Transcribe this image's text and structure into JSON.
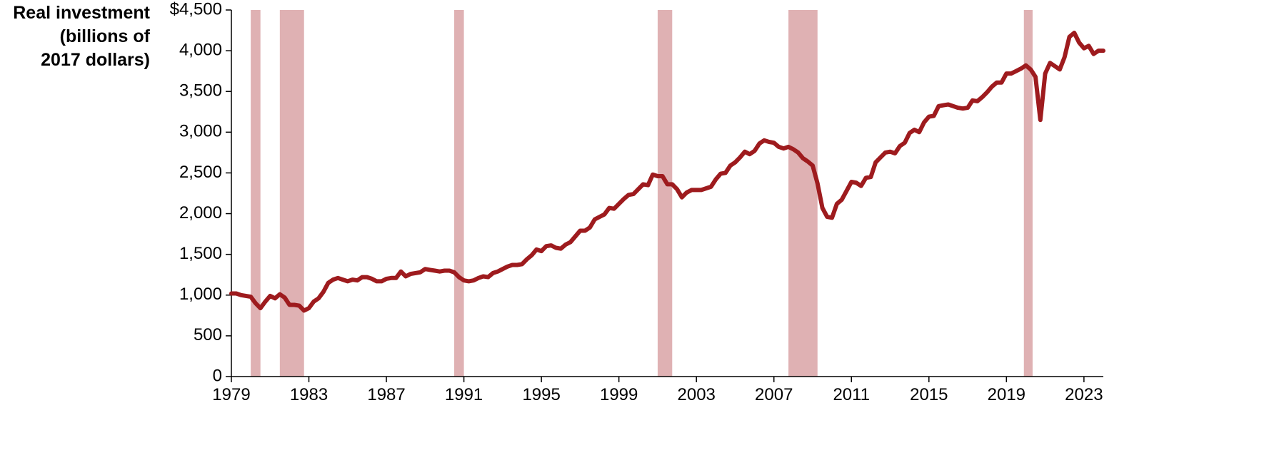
{
  "chart_data": {
    "type": "line",
    "ylabel_lines": [
      "Real investment",
      "(billions of",
      "2017 dollars)"
    ],
    "xlabel": "",
    "ylim": [
      0,
      4500
    ],
    "xlim": [
      1979.0,
      2024.0
    ],
    "x_ticks": [
      1979,
      1983,
      1987,
      1991,
      1995,
      1999,
      2003,
      2007,
      2011,
      2015,
      2019,
      2023
    ],
    "y_ticks": [
      {
        "value": 0,
        "label": "0"
      },
      {
        "value": 500,
        "label": "500"
      },
      {
        "value": 1000,
        "label": "1,000"
      },
      {
        "value": 1500,
        "label": "1,500"
      },
      {
        "value": 2000,
        "label": "2,000"
      },
      {
        "value": 2500,
        "label": "2,500"
      },
      {
        "value": 3000,
        "label": "3,000"
      },
      {
        "value": 3500,
        "label": "3,500"
      },
      {
        "value": 4000,
        "label": "4,000"
      },
      {
        "value": 4500,
        "label": "$4,500"
      }
    ],
    "recessions": [
      [
        1980.0,
        1980.5
      ],
      [
        1981.5,
        1982.75
      ],
      [
        1990.5,
        1991.0
      ],
      [
        2001.0,
        2001.75
      ],
      [
        2007.75,
        2009.25
      ],
      [
        2019.9,
        2020.35
      ]
    ],
    "series": [
      {
        "color": "#9e1b1e",
        "points": [
          [
            1979.0,
            1020
          ],
          [
            1979.25,
            1020
          ],
          [
            1979.5,
            1000
          ],
          [
            1979.75,
            990
          ],
          [
            1980.0,
            980
          ],
          [
            1980.25,
            900
          ],
          [
            1980.5,
            840
          ],
          [
            1980.75,
            920
          ],
          [
            1981.0,
            990
          ],
          [
            1981.25,
            960
          ],
          [
            1981.5,
            1010
          ],
          [
            1981.75,
            970
          ],
          [
            1982.0,
            880
          ],
          [
            1982.25,
            880
          ],
          [
            1982.5,
            870
          ],
          [
            1982.75,
            810
          ],
          [
            1983.0,
            840
          ],
          [
            1983.25,
            920
          ],
          [
            1983.5,
            960
          ],
          [
            1983.75,
            1040
          ],
          [
            1984.0,
            1150
          ],
          [
            1984.25,
            1190
          ],
          [
            1984.5,
            1210
          ],
          [
            1984.75,
            1190
          ],
          [
            1985.0,
            1170
          ],
          [
            1985.25,
            1190
          ],
          [
            1985.5,
            1180
          ],
          [
            1985.75,
            1220
          ],
          [
            1986.0,
            1220
          ],
          [
            1986.25,
            1200
          ],
          [
            1986.5,
            1170
          ],
          [
            1986.75,
            1170
          ],
          [
            1987.0,
            1200
          ],
          [
            1987.25,
            1210
          ],
          [
            1987.5,
            1210
          ],
          [
            1987.75,
            1290
          ],
          [
            1988.0,
            1230
          ],
          [
            1988.25,
            1260
          ],
          [
            1988.5,
            1270
          ],
          [
            1988.75,
            1280
          ],
          [
            1989.0,
            1320
          ],
          [
            1989.25,
            1310
          ],
          [
            1989.5,
            1300
          ],
          [
            1989.75,
            1290
          ],
          [
            1990.0,
            1300
          ],
          [
            1990.25,
            1300
          ],
          [
            1990.5,
            1280
          ],
          [
            1990.75,
            1220
          ],
          [
            1991.0,
            1180
          ],
          [
            1991.25,
            1170
          ],
          [
            1991.5,
            1180
          ],
          [
            1991.75,
            1210
          ],
          [
            1992.0,
            1230
          ],
          [
            1992.25,
            1220
          ],
          [
            1992.5,
            1270
          ],
          [
            1992.75,
            1290
          ],
          [
            1993.0,
            1320
          ],
          [
            1993.25,
            1350
          ],
          [
            1993.5,
            1370
          ],
          [
            1993.75,
            1370
          ],
          [
            1994.0,
            1380
          ],
          [
            1994.25,
            1440
          ],
          [
            1994.5,
            1490
          ],
          [
            1994.75,
            1560
          ],
          [
            1995.0,
            1540
          ],
          [
            1995.25,
            1600
          ],
          [
            1995.5,
            1610
          ],
          [
            1995.75,
            1580
          ],
          [
            1996.0,
            1570
          ],
          [
            1996.25,
            1620
          ],
          [
            1996.5,
            1650
          ],
          [
            1996.75,
            1720
          ],
          [
            1997.0,
            1790
          ],
          [
            1997.25,
            1790
          ],
          [
            1997.5,
            1830
          ],
          [
            1997.75,
            1930
          ],
          [
            1998.0,
            1960
          ],
          [
            1998.25,
            1990
          ],
          [
            1998.5,
            2070
          ],
          [
            1998.75,
            2060
          ],
          [
            1999.0,
            2120
          ],
          [
            1999.25,
            2180
          ],
          [
            1999.5,
            2230
          ],
          [
            1999.75,
            2240
          ],
          [
            2000.0,
            2300
          ],
          [
            2000.25,
            2360
          ],
          [
            2000.5,
            2350
          ],
          [
            2000.75,
            2480
          ],
          [
            2001.0,
            2460
          ],
          [
            2001.25,
            2460
          ],
          [
            2001.5,
            2360
          ],
          [
            2001.75,
            2360
          ],
          [
            2002.0,
            2300
          ],
          [
            2002.25,
            2200
          ],
          [
            2002.5,
            2260
          ],
          [
            2002.75,
            2290
          ],
          [
            2003.0,
            2290
          ],
          [
            2003.25,
            2290
          ],
          [
            2003.5,
            2310
          ],
          [
            2003.75,
            2330
          ],
          [
            2004.0,
            2420
          ],
          [
            2004.25,
            2490
          ],
          [
            2004.5,
            2500
          ],
          [
            2004.75,
            2590
          ],
          [
            2005.0,
            2630
          ],
          [
            2005.25,
            2690
          ],
          [
            2005.5,
            2760
          ],
          [
            2005.75,
            2730
          ],
          [
            2006.0,
            2770
          ],
          [
            2006.25,
            2860
          ],
          [
            2006.5,
            2900
          ],
          [
            2006.75,
            2880
          ],
          [
            2007.0,
            2870
          ],
          [
            2007.25,
            2820
          ],
          [
            2007.5,
            2800
          ],
          [
            2007.75,
            2820
          ],
          [
            2008.0,
            2790
          ],
          [
            2008.25,
            2750
          ],
          [
            2008.5,
            2680
          ],
          [
            2008.75,
            2640
          ],
          [
            2009.0,
            2590
          ],
          [
            2009.25,
            2370
          ],
          [
            2009.5,
            2070
          ],
          [
            2009.75,
            1960
          ],
          [
            2010.0,
            1950
          ],
          [
            2010.25,
            2120
          ],
          [
            2010.5,
            2170
          ],
          [
            2010.75,
            2280
          ],
          [
            2011.0,
            2390
          ],
          [
            2011.25,
            2380
          ],
          [
            2011.5,
            2340
          ],
          [
            2011.75,
            2440
          ],
          [
            2012.0,
            2450
          ],
          [
            2012.25,
            2630
          ],
          [
            2012.5,
            2690
          ],
          [
            2012.75,
            2750
          ],
          [
            2013.0,
            2760
          ],
          [
            2013.25,
            2740
          ],
          [
            2013.5,
            2830
          ],
          [
            2013.75,
            2870
          ],
          [
            2014.0,
            2990
          ],
          [
            2014.25,
            3030
          ],
          [
            2014.5,
            3000
          ],
          [
            2014.75,
            3120
          ],
          [
            2015.0,
            3190
          ],
          [
            2015.25,
            3200
          ],
          [
            2015.5,
            3320
          ],
          [
            2015.75,
            3330
          ],
          [
            2016.0,
            3340
          ],
          [
            2016.25,
            3320
          ],
          [
            2016.5,
            3300
          ],
          [
            2016.75,
            3290
          ],
          [
            2017.0,
            3300
          ],
          [
            2017.25,
            3390
          ],
          [
            2017.5,
            3380
          ],
          [
            2017.75,
            3430
          ],
          [
            2018.0,
            3490
          ],
          [
            2018.25,
            3560
          ],
          [
            2018.5,
            3610
          ],
          [
            2018.75,
            3610
          ],
          [
            2019.0,
            3720
          ],
          [
            2019.25,
            3720
          ],
          [
            2019.5,
            3750
          ],
          [
            2019.75,
            3780
          ],
          [
            2020.0,
            3820
          ],
          [
            2020.25,
            3770
          ],
          [
            2020.5,
            3680
          ],
          [
            2020.75,
            3150
          ],
          [
            2021.0,
            3720
          ],
          [
            2021.25,
            3850
          ],
          [
            2021.5,
            3810
          ],
          [
            2021.75,
            3770
          ],
          [
            2022.0,
            3920
          ],
          [
            2022.25,
            4170
          ],
          [
            2022.5,
            4220
          ],
          [
            2022.75,
            4100
          ],
          [
            2023.0,
            4030
          ],
          [
            2023.25,
            4060
          ],
          [
            2023.5,
            3960
          ],
          [
            2023.75,
            4000
          ],
          [
            2024.0,
            4000
          ]
        ]
      }
    ]
  }
}
